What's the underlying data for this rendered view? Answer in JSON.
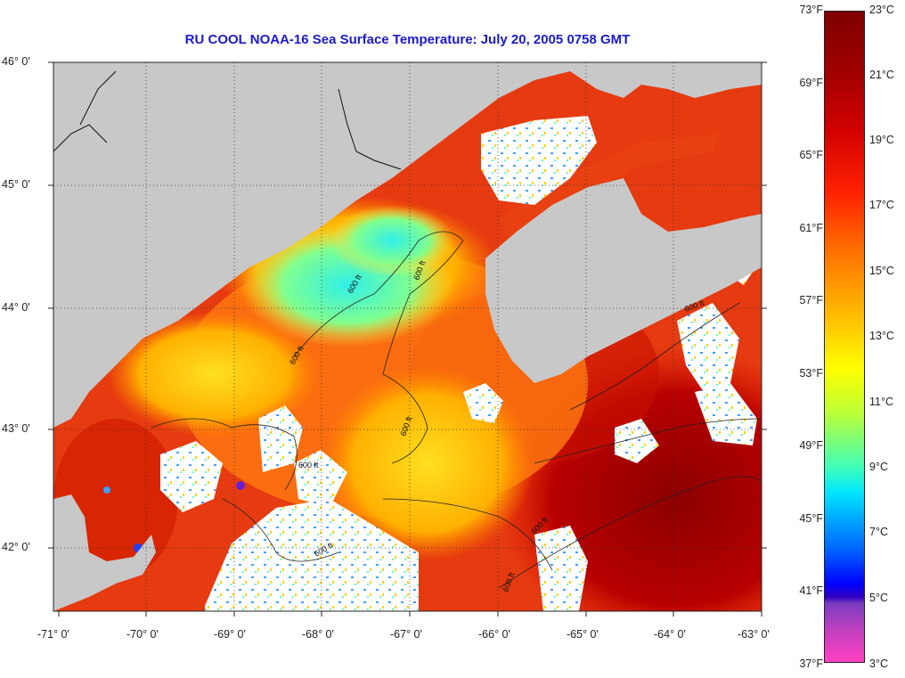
{
  "title": "RU COOL  NOAA-16  Sea Surface Temperature:  July 20, 2005 0758 GMT",
  "map": {
    "lat_labels": [
      "46° 0'",
      "45° 0'",
      "44° 0'",
      "43° 0'",
      "42° 0'"
    ],
    "lon_labels": [
      "-71° 0'",
      "-70° 0'",
      "-69° 0'",
      "-68° 0'",
      "-67° 0'",
      "-66° 0'",
      "-65° 0'",
      "-64° 0'",
      "-63° 0'"
    ],
    "contour_label": "600 ft",
    "colors": {
      "land": "#c8c8c8",
      "cloud": "#ffffff",
      "coast": "#111111"
    }
  },
  "colorbar": {
    "fahrenheit_labels": [
      "73°F",
      "69°F",
      "65°F",
      "61°F",
      "57°F",
      "53°F",
      "49°F",
      "45°F",
      "41°F",
      "37°F"
    ],
    "celsius_labels": [
      "23°C",
      "21°C",
      "19°C",
      "17°C",
      "15°C",
      "13°C",
      "11°C",
      "9°C",
      "7°C",
      "5°C",
      "3°C"
    ],
    "range_fahrenheit": [
      37,
      73
    ],
    "range_celsius": [
      3,
      23
    ]
  }
}
